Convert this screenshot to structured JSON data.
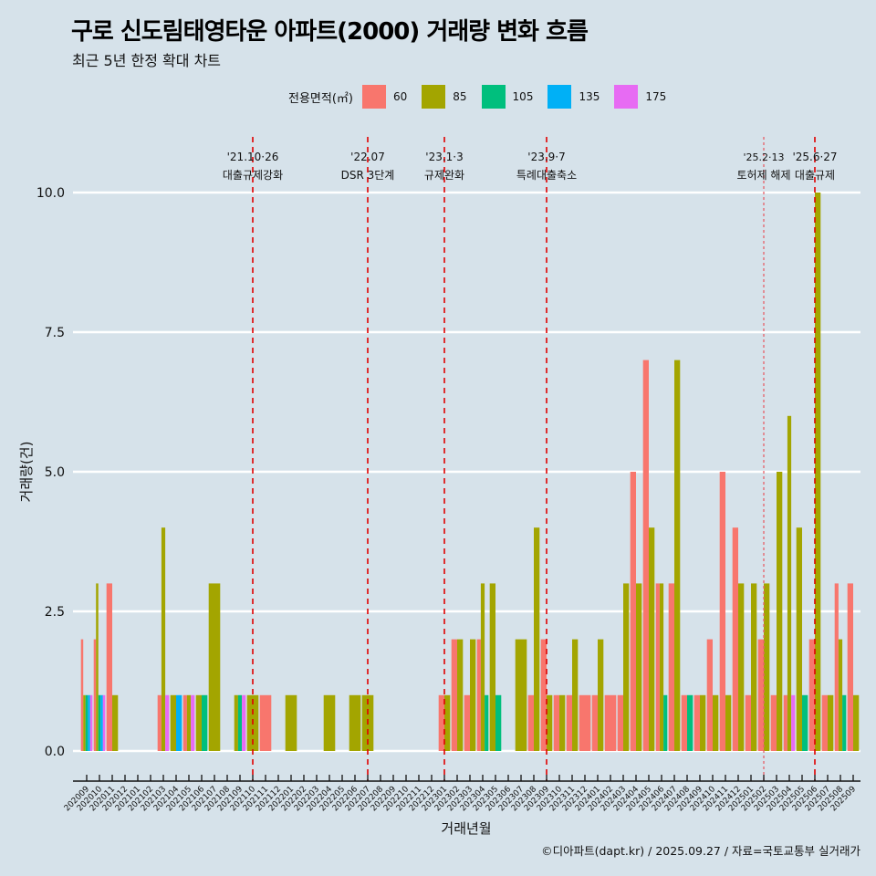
{
  "header": {
    "title": "구로 신도림태영타운 아파트(2000) 거래량 변화 흐름",
    "subtitle": "최근 5년 한정 확대 차트"
  },
  "legend": {
    "title": "전용면적(㎡)",
    "items": [
      {
        "label": "60",
        "color": "#f8766d"
      },
      {
        "label": "85",
        "color": "#a3a500"
      },
      {
        "label": "105",
        "color": "#00bf7d"
      },
      {
        "label": "135",
        "color": "#00b0f6"
      },
      {
        "label": "175",
        "color": "#e76bf3"
      }
    ]
  },
  "footer": {
    "credit": "©디아파트(dapt.kr) / 2025.09.27 / 자료=국토교통부 실거래가"
  },
  "chart_data": {
    "type": "bar",
    "title": "구로 신도림태영타운 아파트(2000) 거래량 변화 흐름",
    "subtitle": "최근 5년 한정 확대 차트",
    "xlabel": "거래년월",
    "ylabel": "거래량(건)",
    "ylim": [
      0,
      10
    ],
    "yticks": [
      "0.0",
      "2.5",
      "5.0",
      "7.5",
      "10.0"
    ],
    "ytick_values": [
      0,
      2.5,
      5,
      7.5,
      10
    ],
    "grid": true,
    "legend_position": "top",
    "bar_mode": "dodge",
    "categories": [
      "202009",
      "202010",
      "202011",
      "202012",
      "202101",
      "202102",
      "202103",
      "202104",
      "202105",
      "202106",
      "202107",
      "202108",
      "202109",
      "202110",
      "202111",
      "202112",
      "202201",
      "202202",
      "202203",
      "202204",
      "202205",
      "202206",
      "202207",
      "202208",
      "202209",
      "202210",
      "202211",
      "202212",
      "202301",
      "202302",
      "202303",
      "202304",
      "202305",
      "202306",
      "202307",
      "202308",
      "202309",
      "202310",
      "202311",
      "202312",
      "202401",
      "202402",
      "202403",
      "202404",
      "202405",
      "202406",
      "202407",
      "202408",
      "202409",
      "202410",
      "202411",
      "202412",
      "202501",
      "202502",
      "202503",
      "202504",
      "202505",
      "202506",
      "202507",
      "202508",
      "202509"
    ],
    "series": [
      {
        "name": "60",
        "color": "#f8766d",
        "values": [
          2,
          2,
          3,
          0,
          0,
          0,
          1,
          0,
          1,
          0,
          0,
          0,
          0,
          0,
          1,
          0,
          0,
          0,
          0,
          0,
          0,
          0,
          0,
          0,
          0,
          0,
          0,
          0,
          1,
          2,
          1,
          2,
          0,
          0,
          0,
          1,
          2,
          1,
          1,
          1,
          1,
          1,
          1,
          5,
          7,
          3,
          3,
          1,
          1,
          2,
          5,
          4,
          1,
          2,
          1,
          1,
          0,
          2,
          1,
          3,
          3
        ]
      },
      {
        "name": "85",
        "color": "#a3a500",
        "values": [
          1,
          3,
          1,
          0,
          0,
          0,
          4,
          1,
          1,
          1,
          3,
          0,
          1,
          1,
          0,
          0,
          1,
          0,
          0,
          1,
          0,
          1,
          1,
          0,
          0,
          0,
          0,
          0,
          1,
          2,
          2,
          3,
          3,
          0,
          2,
          4,
          1,
          1,
          2,
          0,
          2,
          0,
          3,
          3,
          4,
          3,
          7,
          0,
          1,
          1,
          1,
          3,
          3,
          3,
          5,
          6,
          4,
          10,
          1,
          2,
          1
        ]
      },
      {
        "name": "105",
        "color": "#00bf7d",
        "values": [
          1,
          1,
          0,
          0,
          0,
          0,
          0,
          0,
          0,
          1,
          0,
          0,
          1,
          0,
          0,
          0,
          0,
          0,
          0,
          0,
          0,
          0,
          0,
          0,
          0,
          0,
          0,
          0,
          0,
          0,
          0,
          1,
          1,
          0,
          0,
          0,
          0,
          0,
          0,
          0,
          0,
          0,
          0,
          0,
          0,
          1,
          0,
          1,
          0,
          0,
          0,
          0,
          0,
          0,
          0,
          0,
          1,
          0,
          0,
          1,
          0
        ]
      },
      {
        "name": "135",
        "color": "#00b0f6",
        "values": [
          1,
          1,
          0,
          0,
          0,
          0,
          0,
          1,
          0,
          0,
          0,
          0,
          0,
          0,
          0,
          0,
          0,
          0,
          0,
          0,
          0,
          0,
          0,
          0,
          0,
          0,
          0,
          0,
          0,
          0,
          0,
          0,
          0,
          0,
          0,
          0,
          0,
          0,
          0,
          0,
          0,
          0,
          0,
          0,
          0,
          0,
          0,
          0,
          0,
          0,
          0,
          0,
          0,
          0,
          0,
          0,
          0,
          0,
          0,
          0,
          0
        ]
      },
      {
        "name": "175",
        "color": "#e76bf3",
        "values": [
          1,
          1,
          0,
          0,
          0,
          0,
          1,
          0,
          1,
          0,
          0,
          0,
          1,
          0,
          0,
          0,
          0,
          0,
          0,
          0,
          0,
          0,
          0,
          0,
          0,
          0,
          0,
          0,
          0,
          0,
          0,
          0,
          0,
          0,
          0,
          0,
          0,
          0,
          0,
          0,
          0,
          0,
          0,
          0,
          0,
          0,
          0,
          0,
          0,
          0,
          0,
          0,
          0,
          0,
          0,
          1,
          0,
          0,
          0,
          0,
          0
        ]
      }
    ],
    "annotations": [
      {
        "month": "202110",
        "date": "'21.10·26",
        "label": "대출규제강화",
        "style": "dashed"
      },
      {
        "month": "202207",
        "date": "'22.07",
        "label": "DSR 3단계",
        "style": "dashed"
      },
      {
        "month": "202301",
        "date": "'23.1·3",
        "label": "규제완화",
        "style": "dashed"
      },
      {
        "month": "202309",
        "date": "'23.9·7",
        "label": "특례대출축소",
        "style": "dashed"
      },
      {
        "month": "202502",
        "date": "'25.2·13",
        "label": "토허제 해제",
        "style": "dotted"
      },
      {
        "month": "202506",
        "date": "'25.6·27",
        "label": "대출규제",
        "style": "dashed"
      }
    ]
  }
}
